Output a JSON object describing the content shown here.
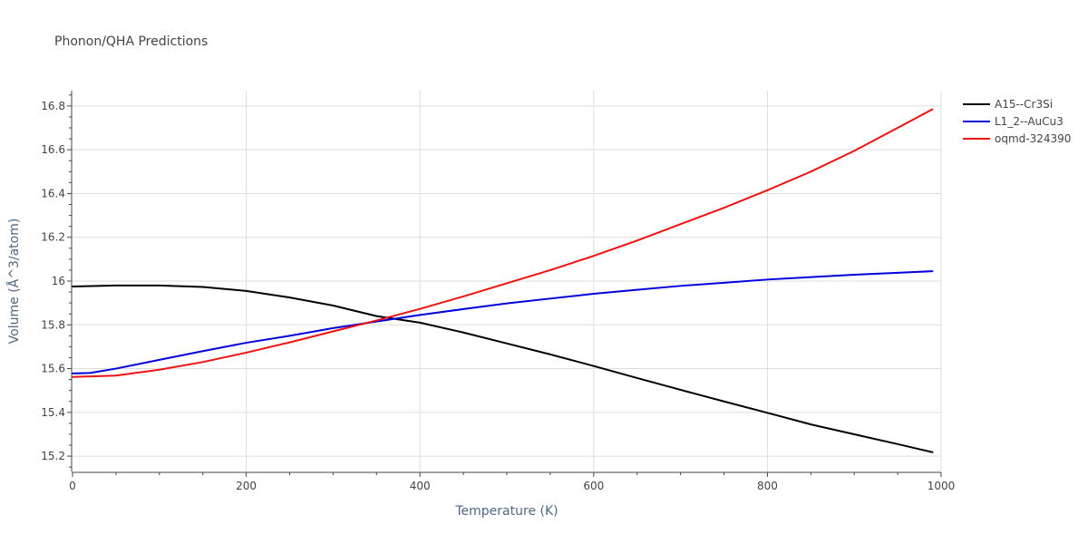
{
  "chart_data": {
    "type": "line",
    "title": "Phonon/QHA Predictions",
    "xlabel": "Temperature (K)",
    "ylabel": "Volume (Å^3/atom)",
    "xlim": [
      0,
      1000
    ],
    "ylim": [
      15.13,
      16.87
    ],
    "xticks": [
      0,
      200,
      400,
      600,
      800,
      1000
    ],
    "yticks": [
      15.2,
      15.4,
      15.6,
      15.8,
      16,
      16.2,
      16.4,
      16.6,
      16.8
    ],
    "xtick_labels": [
      "0",
      "200",
      "400",
      "600",
      "800",
      "1000"
    ],
    "ytick_labels": [
      "15.2",
      "15.4",
      "15.6",
      "15.8",
      "16",
      "16.2",
      "16.4",
      "16.6",
      "16.8"
    ],
    "grid": true,
    "legend_position": "top-right",
    "series": [
      {
        "name": "A15--Cr3Si",
        "color": "#000000",
        "x": [
          0,
          50,
          100,
          150,
          200,
          250,
          300,
          350,
          400,
          450,
          500,
          550,
          600,
          650,
          700,
          750,
          800,
          850,
          900,
          950,
          990
        ],
        "y": [
          15.975,
          15.98,
          15.98,
          15.973,
          15.955,
          15.925,
          15.888,
          15.84,
          15.81,
          15.765,
          15.715,
          15.665,
          15.612,
          15.557,
          15.503,
          15.45,
          15.398,
          15.345,
          15.3,
          15.255,
          15.218
        ]
      },
      {
        "name": "L1_2--AuCu3",
        "color": "#0000dd",
        "x": [
          0,
          20,
          50,
          100,
          150,
          200,
          250,
          300,
          350,
          400,
          450,
          500,
          550,
          600,
          650,
          700,
          750,
          800,
          850,
          900,
          950,
          990
        ],
        "y": [
          15.578,
          15.58,
          15.6,
          15.64,
          15.68,
          15.718,
          15.75,
          15.785,
          15.815,
          15.845,
          15.872,
          15.898,
          15.92,
          15.942,
          15.96,
          15.978,
          15.992,
          16.007,
          16.018,
          16.029,
          16.038,
          16.045
        ]
      },
      {
        "name": "oqmd-324390",
        "color": "#ee1111",
        "x": [
          0,
          50,
          100,
          150,
          200,
          250,
          300,
          350,
          400,
          450,
          500,
          550,
          600,
          650,
          700,
          750,
          800,
          850,
          900,
          950,
          990
        ],
        "y": [
          15.562,
          15.568,
          15.595,
          15.63,
          15.673,
          15.72,
          15.77,
          15.82,
          15.873,
          15.93,
          15.99,
          16.05,
          16.115,
          16.185,
          16.26,
          16.335,
          16.415,
          16.5,
          16.595,
          16.7,
          16.785
        ]
      }
    ]
  }
}
